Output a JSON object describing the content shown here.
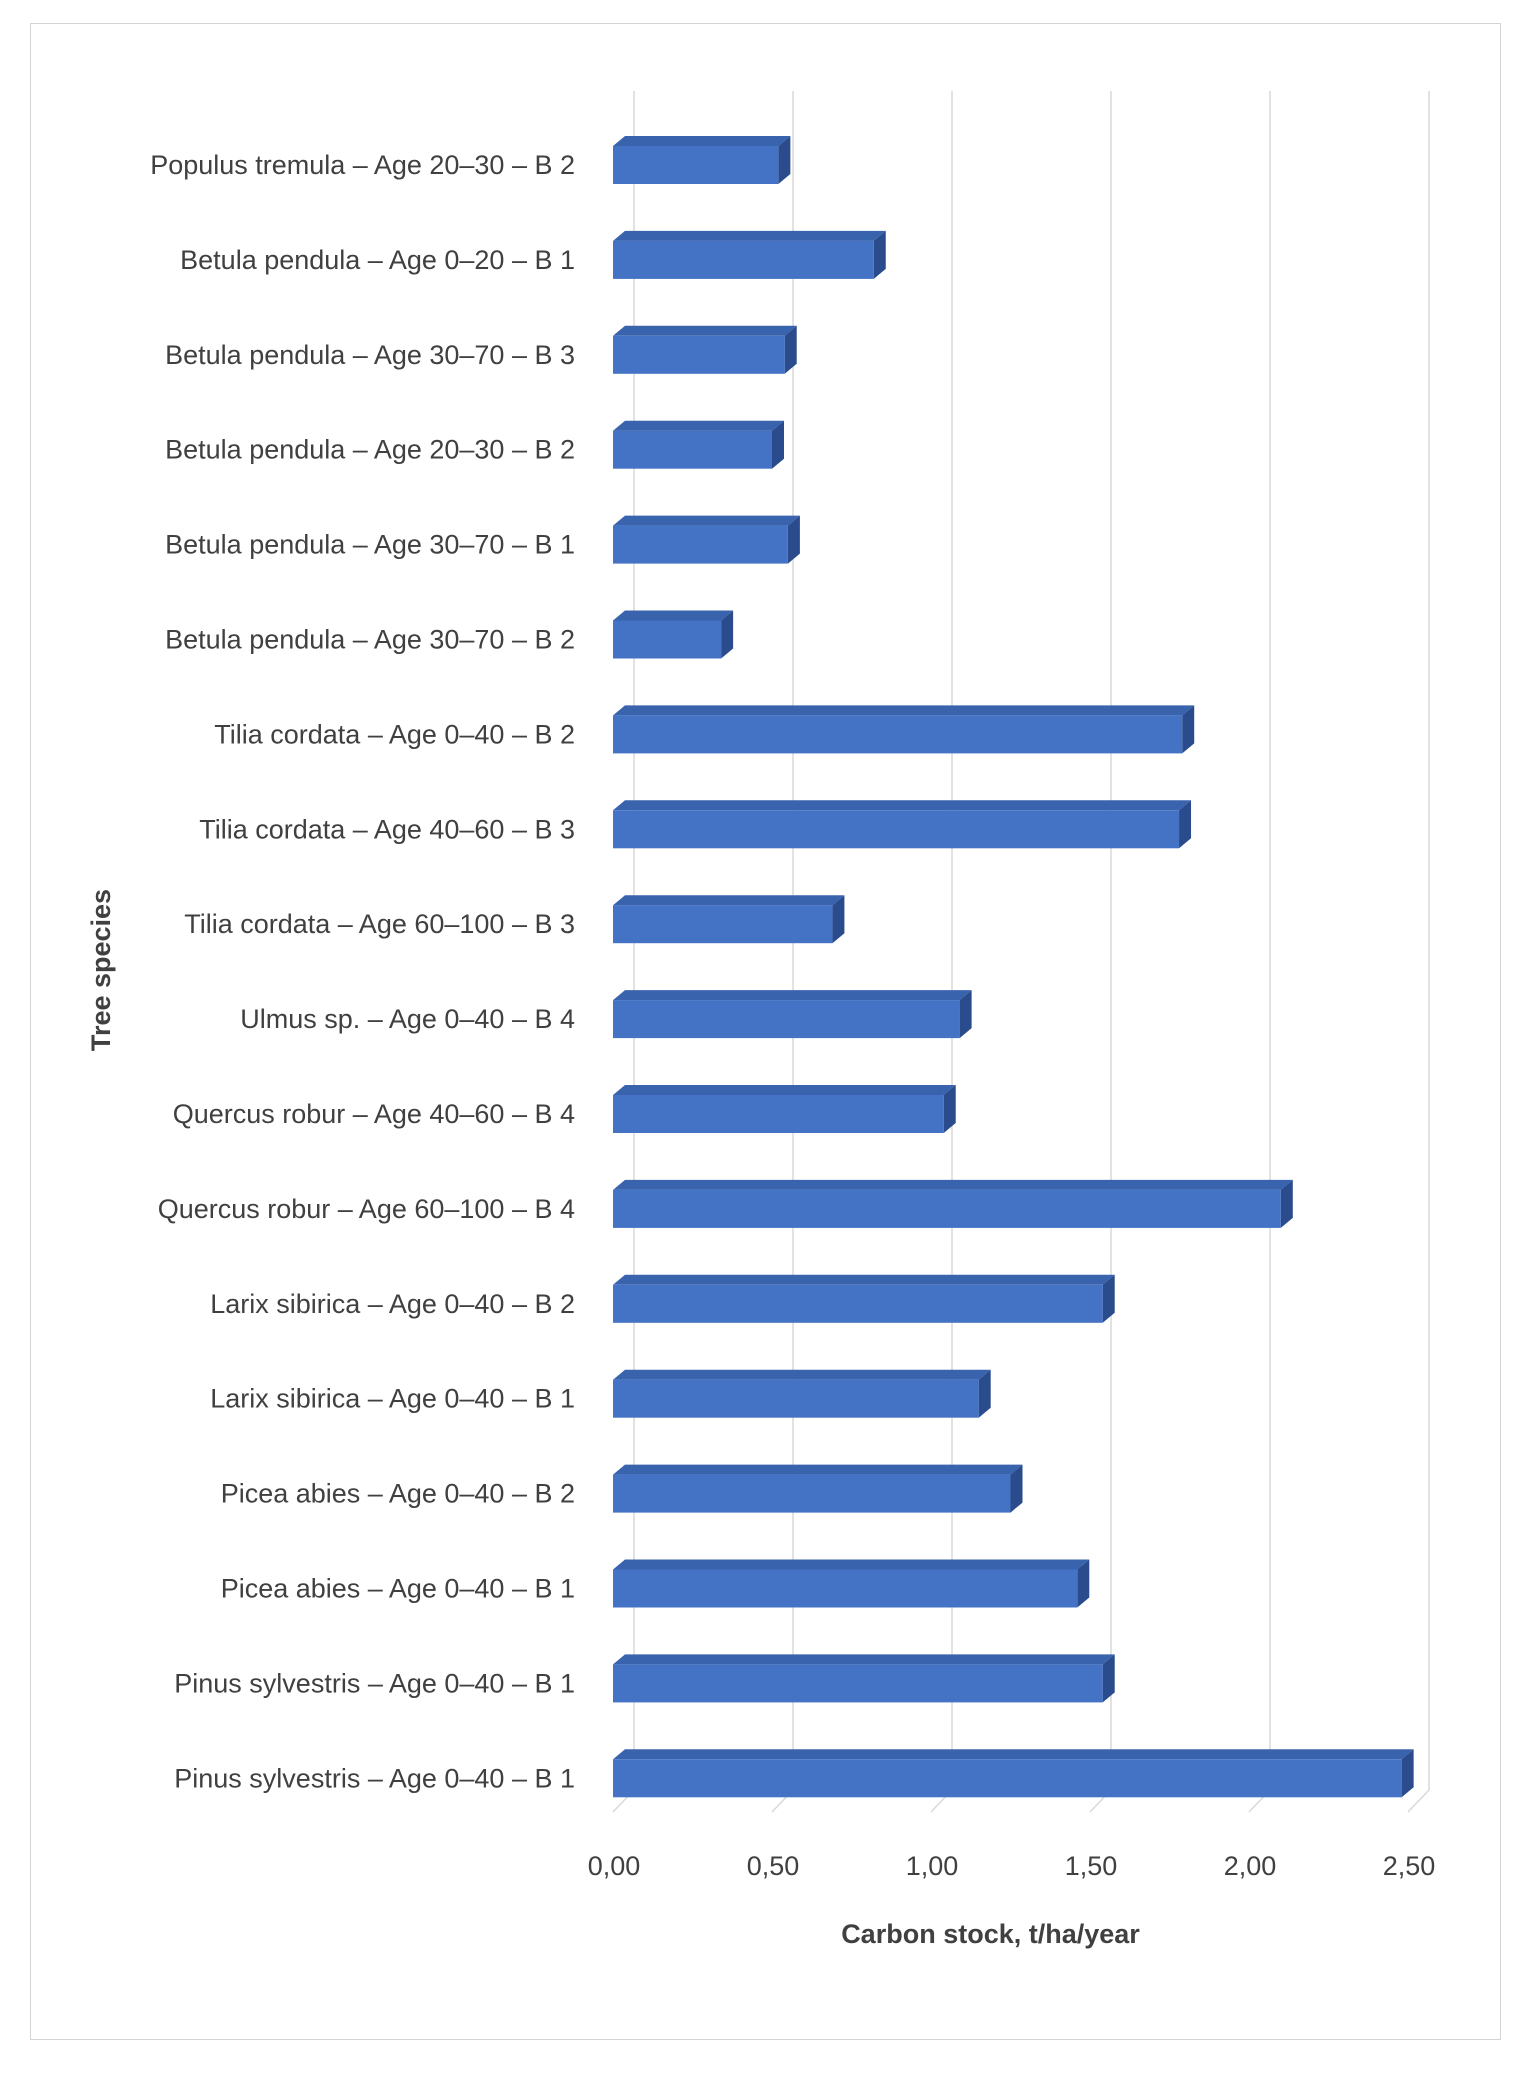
{
  "chart_data": {
    "type": "bar",
    "orientation": "horizontal",
    "style": "3d",
    "title": "",
    "xlabel": "Carbon stock, t/ha/year",
    "ylabel": "Tree species",
    "xlim": [
      0,
      2.5
    ],
    "x_ticks": [
      "0,00",
      "0,50",
      "1,00",
      "1,50",
      "2,00",
      "2,50"
    ],
    "x_tick_values": [
      0,
      0.5,
      1.0,
      1.5,
      2.0,
      2.5
    ],
    "grid": true,
    "bar_color": "#4472C4",
    "bar_top_color": "#3A63AE",
    "bar_side_color": "#2A4C8C",
    "categories": [
      "Populus tremula – Age 20–30 – B 2",
      "Betula pendula – Age 0–20 – B 1",
      "Betula pendula – Age 30–70 – B 3",
      "Betula pendula – Age 20–30 – B 2",
      "Betula pendula – Age 30–70 – B 1",
      "Betula pendula – Age 30–70 – B 2",
      "Tilia cordata – Age 0–40 – B 2",
      "Tilia cordata – Age 40–60 – B 3",
      "Tilia cordata – Age 60–100 – B 3",
      "Ulmus sp. – Age 0–40 – B 4",
      "Quercus robur – Age 40–60 – B 4",
      "Quercus robur – Age 60–100 – B 4",
      "Larix sibirica – Age 0–40  – B 2",
      "Larix sibirica – Age 0–40  – B 1",
      "Picea abies – Age 0–40  – B 2",
      "Picea abies – Age 0–40  – B 1",
      "Pinus sylvestris – Age 0–40  – B 1",
      "Pinus sylvestris – Age 0–40 – B 1"
    ],
    "values": [
      0.52,
      0.82,
      0.54,
      0.5,
      0.55,
      0.34,
      1.79,
      1.78,
      0.69,
      1.09,
      1.04,
      2.1,
      1.54,
      1.15,
      1.25,
      1.46,
      1.54,
      2.48
    ]
  }
}
